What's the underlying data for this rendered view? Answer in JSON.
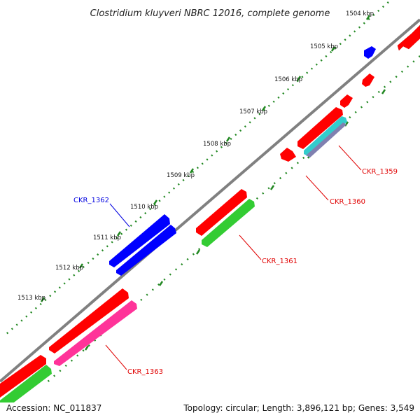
{
  "title": "Clostridium kluyveri NBRC 12016, complete genome",
  "accession": "Accession: NC_011837",
  "summary": "Topology: circular; Length: 3,896,121 bp; Genes: 3,549",
  "ticks": [
    {
      "label": "1504 kbp"
    },
    {
      "label": "1505 kbp"
    },
    {
      "label": "1506 kbp"
    },
    {
      "label": "1507 kbp"
    },
    {
      "label": "1508 kbp"
    },
    {
      "label": "1509 kbp"
    },
    {
      "label": "1510 kbp"
    },
    {
      "label": "1511 kbp"
    },
    {
      "label": "1512 kbp"
    },
    {
      "label": "1513 kbp"
    }
  ],
  "gene_labels": [
    {
      "name": "CKR_1359",
      "color": "#e00000"
    },
    {
      "name": "CKR_1360",
      "color": "#e00000"
    },
    {
      "name": "CKR_1361",
      "color": "#e00000"
    },
    {
      "name": "CKR_1362",
      "color": "#0000e0"
    },
    {
      "name": "CKR_1363",
      "color": "#e00000"
    }
  ],
  "colors": {
    "backbone": "#808080",
    "cds": "#ff0000",
    "gene_blue": "#0000ff",
    "rna_green": "#33cc33",
    "pink": "#ff3399",
    "cyan": "#33cccc",
    "slate": "#8080b0",
    "tick_green": "#228822"
  }
}
